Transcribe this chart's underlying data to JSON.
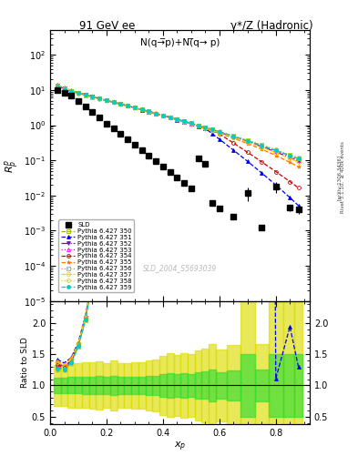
{
  "title_left": "91 GeV ee",
  "title_right": "γ*/Z (Hadronic)",
  "annotation": "N(q→̅p)+N(̅q→ p)",
  "watermark": "SLD_2004_S5693039",
  "ylabel_main": "$R^{p}_{p}$",
  "ylabel_ratio": "Ratio to SLD",
  "xlabel": "$x_p$",
  "right_label": "Rivet 3.1.10,  ≥ 400k events",
  "arxiv_label": "[arXiv:1306.3436]",
  "xp": [
    0.025,
    0.05,
    0.075,
    0.1,
    0.125,
    0.15,
    0.175,
    0.2,
    0.225,
    0.25,
    0.275,
    0.3,
    0.325,
    0.35,
    0.375,
    0.4,
    0.425,
    0.45,
    0.475,
    0.5,
    0.525,
    0.55,
    0.575,
    0.6,
    0.65,
    0.7,
    0.75,
    0.8,
    0.85,
    0.88
  ],
  "sld_y": [
    9.8,
    8.5,
    6.8,
    5.0,
    3.5,
    2.4,
    1.65,
    1.12,
    0.8,
    0.56,
    0.4,
    0.28,
    0.195,
    0.138,
    0.096,
    0.067,
    0.047,
    0.033,
    0.023,
    0.016,
    0.115,
    0.082,
    0.006,
    0.0042,
    0.0025,
    0.012,
    0.0012,
    0.018,
    0.0045,
    0.004
  ],
  "sld_yerr_lo": [
    0.4,
    0.35,
    0.3,
    0.22,
    0.16,
    0.11,
    0.08,
    0.05,
    0.04,
    0.025,
    0.018,
    0.013,
    0.009,
    0.007,
    0.005,
    0.004,
    0.003,
    0.002,
    0.0015,
    0.001,
    0.008,
    0.006,
    0.0005,
    0.0003,
    0.0002,
    0.005,
    0.0001,
    0.006,
    0.001,
    0.001
  ],
  "sld_yerr_hi": [
    0.4,
    0.35,
    0.3,
    0.22,
    0.16,
    0.11,
    0.08,
    0.05,
    0.04,
    0.025,
    0.018,
    0.013,
    0.009,
    0.007,
    0.005,
    0.004,
    0.003,
    0.002,
    0.0015,
    0.001,
    0.008,
    0.006,
    0.0005,
    0.0003,
    0.0002,
    0.005,
    0.0001,
    0.006,
    0.001,
    0.001
  ],
  "models": [
    {
      "label": "Pythia 6.427 350",
      "color": "#aaaa00",
      "linestyle": "--",
      "marker": "s",
      "fillstyle": "none"
    },
    {
      "label": "Pythia 6.427 351",
      "color": "#0000ee",
      "linestyle": "--",
      "marker": "^",
      "fillstyle": "full"
    },
    {
      "label": "Pythia 6.427 352",
      "color": "#8800cc",
      "linestyle": "-.",
      "marker": "v",
      "fillstyle": "full"
    },
    {
      "label": "Pythia 6.427 353",
      "color": "#ee00ee",
      "linestyle": ":",
      "marker": "^",
      "fillstyle": "none"
    },
    {
      "label": "Pythia 6.427 354",
      "color": "#cc0000",
      "linestyle": "--",
      "marker": "o",
      "fillstyle": "none"
    },
    {
      "label": "Pythia 6.427 355",
      "color": "#ff7700",
      "linestyle": "--",
      "marker": "*",
      "fillstyle": "full"
    },
    {
      "label": "Pythia 6.427 356",
      "color": "#88cc00",
      "linestyle": ":",
      "marker": "s",
      "fillstyle": "none"
    },
    {
      "label": "Pythia 6.427 357",
      "color": "#ffcc00",
      "linestyle": "--",
      "marker": "D",
      "fillstyle": "none"
    },
    {
      "label": "Pythia 6.427 358",
      "color": "#cccc44",
      "linestyle": ":",
      "marker": "o",
      "fillstyle": "none"
    },
    {
      "label": "Pythia 6.427 359",
      "color": "#00cccc",
      "linestyle": "--",
      "marker": "o",
      "fillstyle": "full"
    }
  ],
  "band_inner_color": "#33dd33",
  "band_outer_color": "#dddd00",
  "ylim_main": [
    1e-05,
    500
  ],
  "ylim_ratio": [
    0.38,
    2.35
  ],
  "xlim": [
    0.0,
    0.92
  ]
}
